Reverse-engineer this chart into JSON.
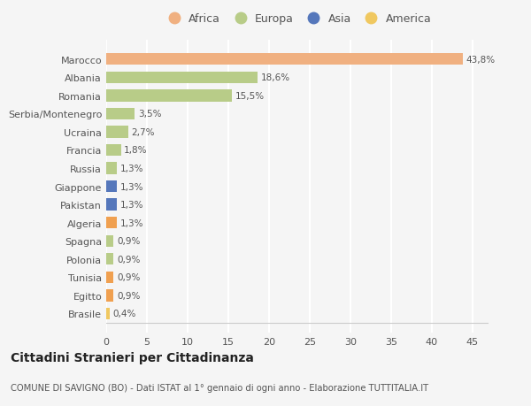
{
  "categories": [
    "Brasile",
    "Egitto",
    "Tunisia",
    "Polonia",
    "Spagna",
    "Algeria",
    "Pakistan",
    "Giappone",
    "Russia",
    "Francia",
    "Ucraina",
    "Serbia/Montenegro",
    "Romania",
    "Albania",
    "Marocco"
  ],
  "values": [
    0.4,
    0.9,
    0.9,
    0.9,
    0.9,
    1.3,
    1.3,
    1.3,
    1.3,
    1.8,
    2.7,
    3.5,
    15.5,
    18.6,
    43.8
  ],
  "colors": [
    "#f0c860",
    "#f0a050",
    "#f0a050",
    "#b8cc88",
    "#b8cc88",
    "#f0a050",
    "#5577bb",
    "#5577bb",
    "#b8cc88",
    "#b8cc88",
    "#b8cc88",
    "#b8cc88",
    "#b8cc88",
    "#b8cc88",
    "#f0b080"
  ],
  "labels": [
    "0,4%",
    "0,9%",
    "0,9%",
    "0,9%",
    "0,9%",
    "1,3%",
    "1,3%",
    "1,3%",
    "1,3%",
    "1,8%",
    "2,7%",
    "3,5%",
    "15,5%",
    "18,6%",
    "43,8%"
  ],
  "legend_labels": [
    "Africa",
    "Europa",
    "Asia",
    "America"
  ],
  "legend_colors": [
    "#f0b080",
    "#b8cc88",
    "#5577bb",
    "#f0c860"
  ],
  "title": "Cittadini Stranieri per Cittadinanza",
  "subtitle": "COMUNE DI SAVIGNO (BO) - Dati ISTAT al 1° gennaio di ogni anno - Elaborazione TUTTITALIA.IT",
  "xlim": [
    0,
    47
  ],
  "xticks": [
    0,
    5,
    10,
    15,
    20,
    25,
    30,
    35,
    40,
    45
  ],
  "background_color": "#f5f5f5",
  "grid_color": "#ffffff"
}
